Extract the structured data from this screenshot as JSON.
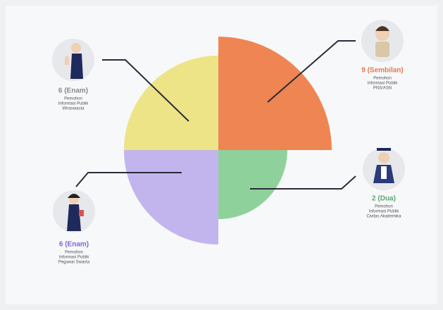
{
  "chart_data": {
    "type": "polar",
    "categories": [
      "PNS/ASN",
      "Civitas Akademika",
      "Pegawai Swasta",
      "Wiraswasta"
    ],
    "values": [
      9,
      2,
      6,
      6
    ],
    "value_labels": [
      "9 (Sembilan)",
      "2 (Dua)",
      "6 (Enam)",
      "6 (Enam)"
    ],
    "descriptions": [
      [
        "Pemohon",
        "Informasi Publik"
      ],
      [
        "Pemohon",
        "Informasi Publik"
      ],
      [
        "Pemohon",
        "Informasi Publik"
      ],
      [
        "Pemohon",
        "Informasi Publik"
      ]
    ],
    "colors": [
      "#ef8552",
      "#8fd19a",
      "#c2b5ee",
      "#ece487"
    ],
    "label_colors": [
      "#e8774a",
      "#5aa872",
      "#8466d6",
      "#8a8a8a"
    ]
  }
}
